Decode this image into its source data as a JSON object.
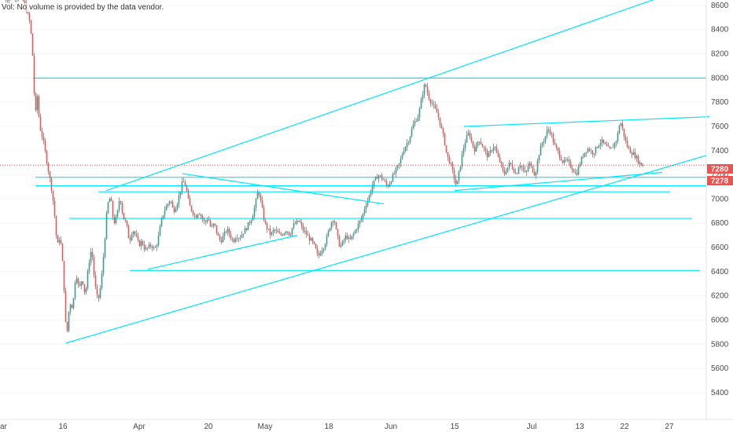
{
  "note": "Vol: No volume is provided by the data vendor.",
  "colors": {
    "up": "#26a69a",
    "down": "#ef5350",
    "trendline": "#00e5ff",
    "axis": "#e0e3eb",
    "price_label": "#ef5350"
  },
  "chart_data": {
    "type": "candlestick",
    "ylim": [
      5300,
      8650
    ],
    "y_ticks": [
      8600,
      8400,
      8200,
      8000,
      7800,
      7600,
      7400,
      7200,
      7000,
      6800,
      6600,
      6400,
      6200,
      6000,
      5800,
      5600,
      5400
    ],
    "x_ticks": [
      "ar",
      "16",
      "Apr",
      "20",
      "May",
      "18",
      "Jun",
      "15",
      "Jul",
      "13",
      "22",
      "27"
    ],
    "price_labels": [
      "7280",
      "7278"
    ],
    "price_path": [
      [
        5,
        8650
      ],
      [
        20,
        8680
      ],
      [
        30,
        8630
      ],
      [
        38,
        8450
      ],
      [
        42,
        8100
      ],
      [
        44,
        7650
      ],
      [
        47,
        7850
      ],
      [
        50,
        7600
      ],
      [
        54,
        7500
      ],
      [
        58,
        7350
      ],
      [
        62,
        7200
      ],
      [
        66,
        7050
      ],
      [
        70,
        6800
      ],
      [
        72,
        6600
      ],
      [
        76,
        6700
      ],
      [
        80,
        6400
      ],
      [
        84,
        5830
      ],
      [
        88,
        6150
      ],
      [
        92,
        6100
      ],
      [
        96,
        6400
      ],
      [
        100,
        6250
      ],
      [
        104,
        6350
      ],
      [
        108,
        6200
      ],
      [
        112,
        6450
      ],
      [
        116,
        6600
      ],
      [
        120,
        6300
      ],
      [
        124,
        6150
      ],
      [
        128,
        6300
      ],
      [
        132,
        6600
      ],
      [
        136,
        6950
      ],
      [
        140,
        7020
      ],
      [
        144,
        6800
      ],
      [
        148,
        6850
      ],
      [
        152,
        7030
      ],
      [
        156,
        6850
      ],
      [
        160,
        6800
      ],
      [
        164,
        6650
      ],
      [
        168,
        6750
      ],
      [
        172,
        6700
      ],
      [
        176,
        6620
      ],
      [
        180,
        6650
      ],
      [
        184,
        6580
      ],
      [
        188,
        6600
      ],
      [
        192,
        6620
      ],
      [
        196,
        6580
      ],
      [
        200,
        6650
      ],
      [
        204,
        6800
      ],
      [
        208,
        6900
      ],
      [
        212,
        6950
      ],
      [
        216,
        7000
      ],
      [
        220,
        6900
      ],
      [
        224,
        6950
      ],
      [
        228,
        7050
      ],
      [
        232,
        7150
      ],
      [
        236,
        7100
      ],
      [
        240,
        6950
      ],
      [
        244,
        6900
      ],
      [
        248,
        6850
      ],
      [
        252,
        6900
      ],
      [
        256,
        6850
      ],
      [
        260,
        6800
      ],
      [
        264,
        6850
      ],
      [
        268,
        6750
      ],
      [
        272,
        6800
      ],
      [
        276,
        6700
      ],
      [
        280,
        6650
      ],
      [
        284,
        6700
      ],
      [
        288,
        6750
      ],
      [
        292,
        6700
      ],
      [
        296,
        6650
      ],
      [
        300,
        6700
      ],
      [
        304,
        6680
      ],
      [
        308,
        6720
      ],
      [
        312,
        6750
      ],
      [
        316,
        6800
      ],
      [
        320,
        6850
      ],
      [
        324,
        6950
      ],
      [
        328,
        7080
      ],
      [
        332,
        6950
      ],
      [
        336,
        6800
      ],
      [
        340,
        6750
      ],
      [
        344,
        6700
      ],
      [
        348,
        6750
      ],
      [
        352,
        6720
      ],
      [
        356,
        6700
      ],
      [
        360,
        6720
      ],
      [
        364,
        6750
      ],
      [
        368,
        6700
      ],
      [
        372,
        6780
      ],
      [
        376,
        6800
      ],
      [
        380,
        6820
      ],
      [
        384,
        6750
      ],
      [
        388,
        6720
      ],
      [
        392,
        6680
      ],
      [
        396,
        6650
      ],
      [
        400,
        6600
      ],
      [
        404,
        6520
      ],
      [
        408,
        6580
      ],
      [
        412,
        6620
      ],
      [
        416,
        6700
      ],
      [
        420,
        6800
      ],
      [
        424,
        6850
      ],
      [
        428,
        6700
      ],
      [
        432,
        6600
      ],
      [
        436,
        6650
      ],
      [
        440,
        6700
      ],
      [
        444,
        6650
      ],
      [
        448,
        6700
      ],
      [
        452,
        6750
      ],
      [
        456,
        6800
      ],
      [
        460,
        6850
      ],
      [
        464,
        6950
      ],
      [
        468,
        7000
      ],
      [
        472,
        7100
      ],
      [
        476,
        7150
      ],
      [
        480,
        7200
      ],
      [
        484,
        7180
      ],
      [
        488,
        7150
      ],
      [
        492,
        7100
      ],
      [
        496,
        7150
      ],
      [
        500,
        7200
      ],
      [
        504,
        7250
      ],
      [
        508,
        7300
      ],
      [
        512,
        7400
      ],
      [
        516,
        7450
      ],
      [
        520,
        7500
      ],
      [
        524,
        7600
      ],
      [
        528,
        7650
      ],
      [
        532,
        7700
      ],
      [
        536,
        7850
      ],
      [
        540,
        7960
      ],
      [
        544,
        7850
      ],
      [
        548,
        7800
      ],
      [
        552,
        7750
      ],
      [
        556,
        7700
      ],
      [
        560,
        7600
      ],
      [
        564,
        7500
      ],
      [
        568,
        7350
      ],
      [
        572,
        7300
      ],
      [
        576,
        7200
      ],
      [
        580,
        7100
      ],
      [
        584,
        7250
      ],
      [
        588,
        7400
      ],
      [
        592,
        7500
      ],
      [
        596,
        7550
      ],
      [
        600,
        7450
      ],
      [
        604,
        7400
      ],
      [
        608,
        7500
      ],
      [
        612,
        7450
      ],
      [
        616,
        7400
      ],
      [
        620,
        7350
      ],
      [
        624,
        7400
      ],
      [
        628,
        7450
      ],
      [
        632,
        7350
      ],
      [
        636,
        7300
      ],
      [
        640,
        7200
      ],
      [
        644,
        7250
      ],
      [
        648,
        7300
      ],
      [
        652,
        7250
      ],
      [
        656,
        7200
      ],
      [
        660,
        7300
      ],
      [
        664,
        7250
      ],
      [
        668,
        7200
      ],
      [
        672,
        7300
      ],
      [
        676,
        7250
      ],
      [
        680,
        7200
      ],
      [
        684,
        7350
      ],
      [
        688,
        7450
      ],
      [
        692,
        7500
      ],
      [
        696,
        7580
      ],
      [
        700,
        7550
      ],
      [
        704,
        7450
      ],
      [
        708,
        7400
      ],
      [
        712,
        7350
      ],
      [
        716,
        7300
      ],
      [
        720,
        7320
      ],
      [
        724,
        7280
      ],
      [
        728,
        7250
      ],
      [
        732,
        7200
      ],
      [
        736,
        7280
      ],
      [
        740,
        7350
      ],
      [
        744,
        7400
      ],
      [
        748,
        7420
      ],
      [
        752,
        7380
      ],
      [
        756,
        7400
      ],
      [
        760,
        7450
      ],
      [
        764,
        7480
      ],
      [
        768,
        7450
      ],
      [
        772,
        7420
      ],
      [
        776,
        7400
      ],
      [
        780,
        7450
      ],
      [
        784,
        7500
      ],
      [
        788,
        7650
      ],
      [
        792,
        7550
      ],
      [
        796,
        7450
      ],
      [
        800,
        7400
      ],
      [
        804,
        7380
      ],
      [
        808,
        7350
      ],
      [
        812,
        7300
      ],
      [
        816,
        7280
      ],
      [
        818,
        7280
      ]
    ],
    "horizontal_levels": [
      {
        "price": 8000,
        "x1": 42,
        "x2": 898
      },
      {
        "price": 7180,
        "x1": 45,
        "x2": 898
      },
      {
        "price": 7110,
        "x1": 45,
        "x2": 898
      },
      {
        "price": 7060,
        "x1": 125,
        "x2": 852
      },
      {
        "price": 6840,
        "x1": 88,
        "x2": 880
      },
      {
        "price": 6410,
        "x1": 165,
        "x2": 890
      }
    ],
    "trendlines": [
      {
        "x1": 84,
        "y1": 5810,
        "x2": 898,
        "y2": 7360
      },
      {
        "x1": 135,
        "y1": 7070,
        "x2": 832,
        "y2": 8650
      },
      {
        "x1": 590,
        "y1": 7600,
        "x2": 902,
        "y2": 7680
      },
      {
        "x1": 578,
        "y1": 7070,
        "x2": 842,
        "y2": 7220
      },
      {
        "x1": 232,
        "y1": 7210,
        "x2": 488,
        "y2": 6960
      },
      {
        "x1": 188,
        "y1": 6420,
        "x2": 378,
        "y2": 6700
      }
    ]
  }
}
